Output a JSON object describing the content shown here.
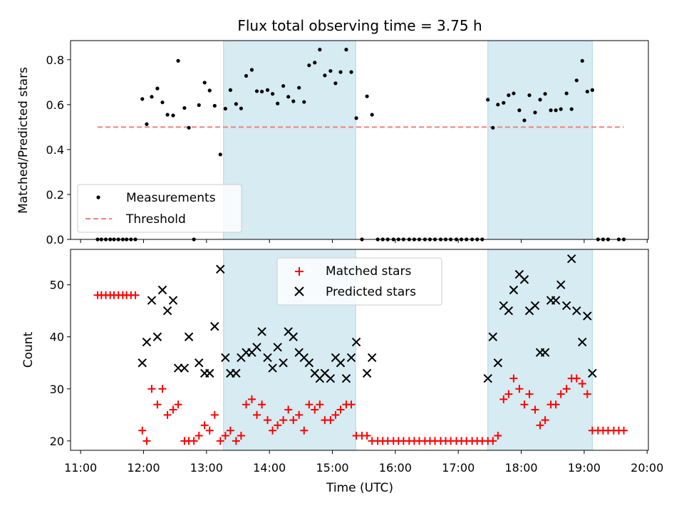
{
  "chart_data": {
    "title": "Flux total observing time = 3.75 h",
    "xlabel": "Time (UTC)",
    "x_unit": "hour of day (UTC)",
    "xlim": [
      10.84,
      20.02
    ],
    "xticks": [
      {
        "value": 11,
        "label": "11:00"
      },
      {
        "value": 12,
        "label": "12:00"
      },
      {
        "value": 13,
        "label": "13:00"
      },
      {
        "value": 14,
        "label": "14:00"
      },
      {
        "value": 15,
        "label": "15:00"
      },
      {
        "value": 16,
        "label": "16:00"
      },
      {
        "value": 17,
        "label": "17:00"
      },
      {
        "value": 18,
        "label": "18:00"
      },
      {
        "value": 19,
        "label": "19:00"
      },
      {
        "value": 20,
        "label": "20:00"
      }
    ],
    "observing_windows": [
      [
        13.27,
        15.37
      ],
      [
        17.47,
        19.13
      ]
    ],
    "window_color": "#add8e6",
    "top": {
      "type": "scatter",
      "ylabel": "Matched/Predicted stars",
      "ylim": [
        0,
        0.885
      ],
      "yticks": [
        "0.0",
        "0.2",
        "0.4",
        "0.6",
        "0.8"
      ],
      "ytick_values": [
        0,
        0.2,
        0.4,
        0.6,
        0.8
      ],
      "threshold": {
        "name": "Threshold",
        "y": 0.5,
        "x_range": [
          11.27,
          19.63
        ],
        "color": "#f08080"
      },
      "measurements": {
        "name": "Measurements",
        "color": "#000000",
        "points": [
          [
            11.27,
            0
          ],
          [
            11.33,
            0
          ],
          [
            11.4,
            0
          ],
          [
            11.47,
            0
          ],
          [
            11.53,
            0
          ],
          [
            11.6,
            0
          ],
          [
            11.67,
            0
          ],
          [
            11.73,
            0
          ],
          [
            11.8,
            0
          ],
          [
            11.87,
            0
          ],
          [
            11.98,
            0.625
          ],
          [
            12.05,
            0.513
          ],
          [
            12.13,
            0.635
          ],
          [
            12.22,
            0.672
          ],
          [
            12.3,
            0.61
          ],
          [
            12.38,
            0.555
          ],
          [
            12.47,
            0.552
          ],
          [
            12.55,
            0.795
          ],
          [
            12.65,
            0.585
          ],
          [
            12.72,
            0.497
          ],
          [
            12.8,
            0
          ],
          [
            12.88,
            0.598
          ],
          [
            12.97,
            0.698
          ],
          [
            13.05,
            0.663
          ],
          [
            13.13,
            0.595
          ],
          [
            13.22,
            0.378
          ],
          [
            13.3,
            0.582
          ],
          [
            13.38,
            0.665
          ],
          [
            13.47,
            0.603
          ],
          [
            13.55,
            0.583
          ],
          [
            13.63,
            0.728
          ],
          [
            13.72,
            0.755
          ],
          [
            13.8,
            0.66
          ],
          [
            13.88,
            0.658
          ],
          [
            13.97,
            0.665
          ],
          [
            14.05,
            0.648
          ],
          [
            14.13,
            0.605
          ],
          [
            14.22,
            0.683
          ],
          [
            14.3,
            0.635
          ],
          [
            14.38,
            0.615
          ],
          [
            14.47,
            0.675
          ],
          [
            14.55,
            0.612
          ],
          [
            14.63,
            0.775
          ],
          [
            14.72,
            0.787
          ],
          [
            14.8,
            0.845
          ],
          [
            14.88,
            0.73
          ],
          [
            14.97,
            0.75
          ],
          [
            15.05,
            0.695
          ],
          [
            15.13,
            0.745
          ],
          [
            15.22,
            0.845
          ],
          [
            15.3,
            0.745
          ],
          [
            15.38,
            0.54
          ],
          [
            15.47,
            0
          ],
          [
            15.55,
            0.637
          ],
          [
            15.63,
            0.555
          ],
          [
            15.72,
            0
          ],
          [
            15.8,
            0
          ],
          [
            15.88,
            0
          ],
          [
            15.97,
            0
          ],
          [
            16.05,
            0
          ],
          [
            16.13,
            0
          ],
          [
            16.22,
            0
          ],
          [
            16.3,
            0
          ],
          [
            16.38,
            0
          ],
          [
            16.47,
            0
          ],
          [
            16.55,
            0
          ],
          [
            16.63,
            0
          ],
          [
            16.72,
            0
          ],
          [
            16.8,
            0
          ],
          [
            16.88,
            0
          ],
          [
            16.97,
            0
          ],
          [
            17.05,
            0
          ],
          [
            17.13,
            0
          ],
          [
            17.22,
            0
          ],
          [
            17.3,
            0
          ],
          [
            17.38,
            0
          ],
          [
            17.47,
            0.622
          ],
          [
            17.55,
            0.497
          ],
          [
            17.63,
            0.6
          ],
          [
            17.72,
            0.608
          ],
          [
            17.8,
            0.642
          ],
          [
            17.88,
            0.65
          ],
          [
            17.97,
            0.575
          ],
          [
            18.05,
            0.53
          ],
          [
            18.13,
            0.642
          ],
          [
            18.22,
            0.565
          ],
          [
            18.3,
            0.622
          ],
          [
            18.38,
            0.648
          ],
          [
            18.47,
            0.575
          ],
          [
            18.55,
            0.575
          ],
          [
            18.63,
            0.58
          ],
          [
            18.72,
            0.65
          ],
          [
            18.8,
            0.58
          ],
          [
            18.88,
            0.708
          ],
          [
            18.97,
            0.795
          ],
          [
            19.05,
            0.658
          ],
          [
            19.13,
            0.665
          ],
          [
            19.22,
            0
          ],
          [
            19.3,
            0
          ],
          [
            19.38,
            0
          ],
          [
            19.55,
            0
          ],
          [
            19.63,
            0
          ]
        ]
      }
    },
    "bottom": {
      "type": "scatter",
      "ylabel": "Count",
      "ylim": [
        18.2,
        56.8
      ],
      "yticks": [
        "20",
        "30",
        "40",
        "50"
      ],
      "ytick_values": [
        20,
        30,
        40,
        50
      ],
      "matched": {
        "name": "Matched stars",
        "color": "#ff0000",
        "points": [
          [
            11.27,
            48
          ],
          [
            11.33,
            48
          ],
          [
            11.4,
            48
          ],
          [
            11.47,
            48
          ],
          [
            11.53,
            48
          ],
          [
            11.6,
            48
          ],
          [
            11.67,
            48
          ],
          [
            11.73,
            48
          ],
          [
            11.8,
            48
          ],
          [
            11.87,
            48
          ],
          [
            11.98,
            22
          ],
          [
            12.05,
            20
          ],
          [
            12.13,
            30
          ],
          [
            12.22,
            27
          ],
          [
            12.3,
            30
          ],
          [
            12.38,
            25
          ],
          [
            12.47,
            26
          ],
          [
            12.55,
            27
          ],
          [
            12.65,
            20
          ],
          [
            12.72,
            20
          ],
          [
            12.8,
            20
          ],
          [
            12.88,
            21
          ],
          [
            12.97,
            23
          ],
          [
            13.05,
            22
          ],
          [
            13.13,
            25
          ],
          [
            13.22,
            20
          ],
          [
            13.3,
            21
          ],
          [
            13.38,
            22
          ],
          [
            13.47,
            20
          ],
          [
            13.55,
            21
          ],
          [
            13.63,
            27
          ],
          [
            13.72,
            28
          ],
          [
            13.8,
            25
          ],
          [
            13.88,
            27
          ],
          [
            13.97,
            24
          ],
          [
            14.05,
            22
          ],
          [
            14.13,
            23
          ],
          [
            14.22,
            24
          ],
          [
            14.3,
            26
          ],
          [
            14.38,
            24
          ],
          [
            14.47,
            25
          ],
          [
            14.55,
            22
          ],
          [
            14.63,
            27
          ],
          [
            14.72,
            26
          ],
          [
            14.8,
            27
          ],
          [
            14.88,
            24
          ],
          [
            14.97,
            24
          ],
          [
            15.05,
            25
          ],
          [
            15.13,
            26
          ],
          [
            15.22,
            27
          ],
          [
            15.3,
            27
          ],
          [
            15.38,
            21
          ],
          [
            15.47,
            21
          ],
          [
            15.55,
            21
          ],
          [
            15.63,
            20
          ],
          [
            15.72,
            20
          ],
          [
            15.8,
            20
          ],
          [
            15.88,
            20
          ],
          [
            15.97,
            20
          ],
          [
            16.05,
            20
          ],
          [
            16.13,
            20
          ],
          [
            16.22,
            20
          ],
          [
            16.3,
            20
          ],
          [
            16.38,
            20
          ],
          [
            16.47,
            20
          ],
          [
            16.55,
            20
          ],
          [
            16.63,
            20
          ],
          [
            16.72,
            20
          ],
          [
            16.8,
            20
          ],
          [
            16.88,
            20
          ],
          [
            16.97,
            20
          ],
          [
            17.05,
            20
          ],
          [
            17.13,
            20
          ],
          [
            17.22,
            20
          ],
          [
            17.3,
            20
          ],
          [
            17.38,
            20
          ],
          [
            17.47,
            20
          ],
          [
            17.55,
            20
          ],
          [
            17.63,
            21
          ],
          [
            17.72,
            28
          ],
          [
            17.8,
            29
          ],
          [
            17.88,
            32
          ],
          [
            17.97,
            30
          ],
          [
            18.05,
            27
          ],
          [
            18.13,
            29
          ],
          [
            18.22,
            26
          ],
          [
            18.3,
            23
          ],
          [
            18.38,
            24
          ],
          [
            18.47,
            27
          ],
          [
            18.55,
            27
          ],
          [
            18.63,
            29
          ],
          [
            18.72,
            30
          ],
          [
            18.8,
            32
          ],
          [
            18.88,
            32
          ],
          [
            18.97,
            31
          ],
          [
            19.05,
            29
          ],
          [
            19.13,
            22
          ],
          [
            19.22,
            22
          ],
          [
            19.3,
            22
          ],
          [
            19.38,
            22
          ],
          [
            19.47,
            22
          ],
          [
            19.55,
            22
          ],
          [
            19.63,
            22
          ]
        ]
      },
      "predicted": {
        "name": "Predicted stars",
        "color": "#000000",
        "points": [
          [
            11.98,
            35
          ],
          [
            12.05,
            39
          ],
          [
            12.13,
            47
          ],
          [
            12.22,
            40
          ],
          [
            12.3,
            49
          ],
          [
            12.38,
            45
          ],
          [
            12.47,
            47
          ],
          [
            12.55,
            34
          ],
          [
            12.65,
            34
          ],
          [
            12.72,
            40
          ],
          [
            12.88,
            35
          ],
          [
            12.97,
            33
          ],
          [
            13.05,
            33
          ],
          [
            13.13,
            42
          ],
          [
            13.22,
            53
          ],
          [
            13.3,
            36
          ],
          [
            13.38,
            33
          ],
          [
            13.47,
            33
          ],
          [
            13.55,
            36
          ],
          [
            13.63,
            37
          ],
          [
            13.72,
            37
          ],
          [
            13.8,
            38
          ],
          [
            13.88,
            41
          ],
          [
            13.97,
            36
          ],
          [
            14.05,
            34
          ],
          [
            14.13,
            38
          ],
          [
            14.22,
            35
          ],
          [
            14.3,
            41
          ],
          [
            14.38,
            40
          ],
          [
            14.47,
            37
          ],
          [
            14.55,
            36
          ],
          [
            14.63,
            35
          ],
          [
            14.72,
            33
          ],
          [
            14.8,
            32
          ],
          [
            14.88,
            33
          ],
          [
            14.97,
            32
          ],
          [
            15.05,
            36
          ],
          [
            15.13,
            35
          ],
          [
            15.22,
            32
          ],
          [
            15.3,
            36
          ],
          [
            15.38,
            39
          ],
          [
            15.55,
            33
          ],
          [
            15.63,
            36
          ],
          [
            17.47,
            32
          ],
          [
            17.55,
            40
          ],
          [
            17.63,
            35
          ],
          [
            17.72,
            46
          ],
          [
            17.8,
            45
          ],
          [
            17.88,
            49
          ],
          [
            17.97,
            52
          ],
          [
            18.05,
            51
          ],
          [
            18.13,
            45
          ],
          [
            18.22,
            46
          ],
          [
            18.3,
            37
          ],
          [
            18.38,
            37
          ],
          [
            18.47,
            47
          ],
          [
            18.55,
            47
          ],
          [
            18.63,
            50
          ],
          [
            18.72,
            46
          ],
          [
            18.8,
            55
          ],
          [
            18.88,
            45
          ],
          [
            18.97,
            39
          ],
          [
            19.05,
            44
          ],
          [
            19.13,
            33
          ]
        ]
      }
    }
  }
}
